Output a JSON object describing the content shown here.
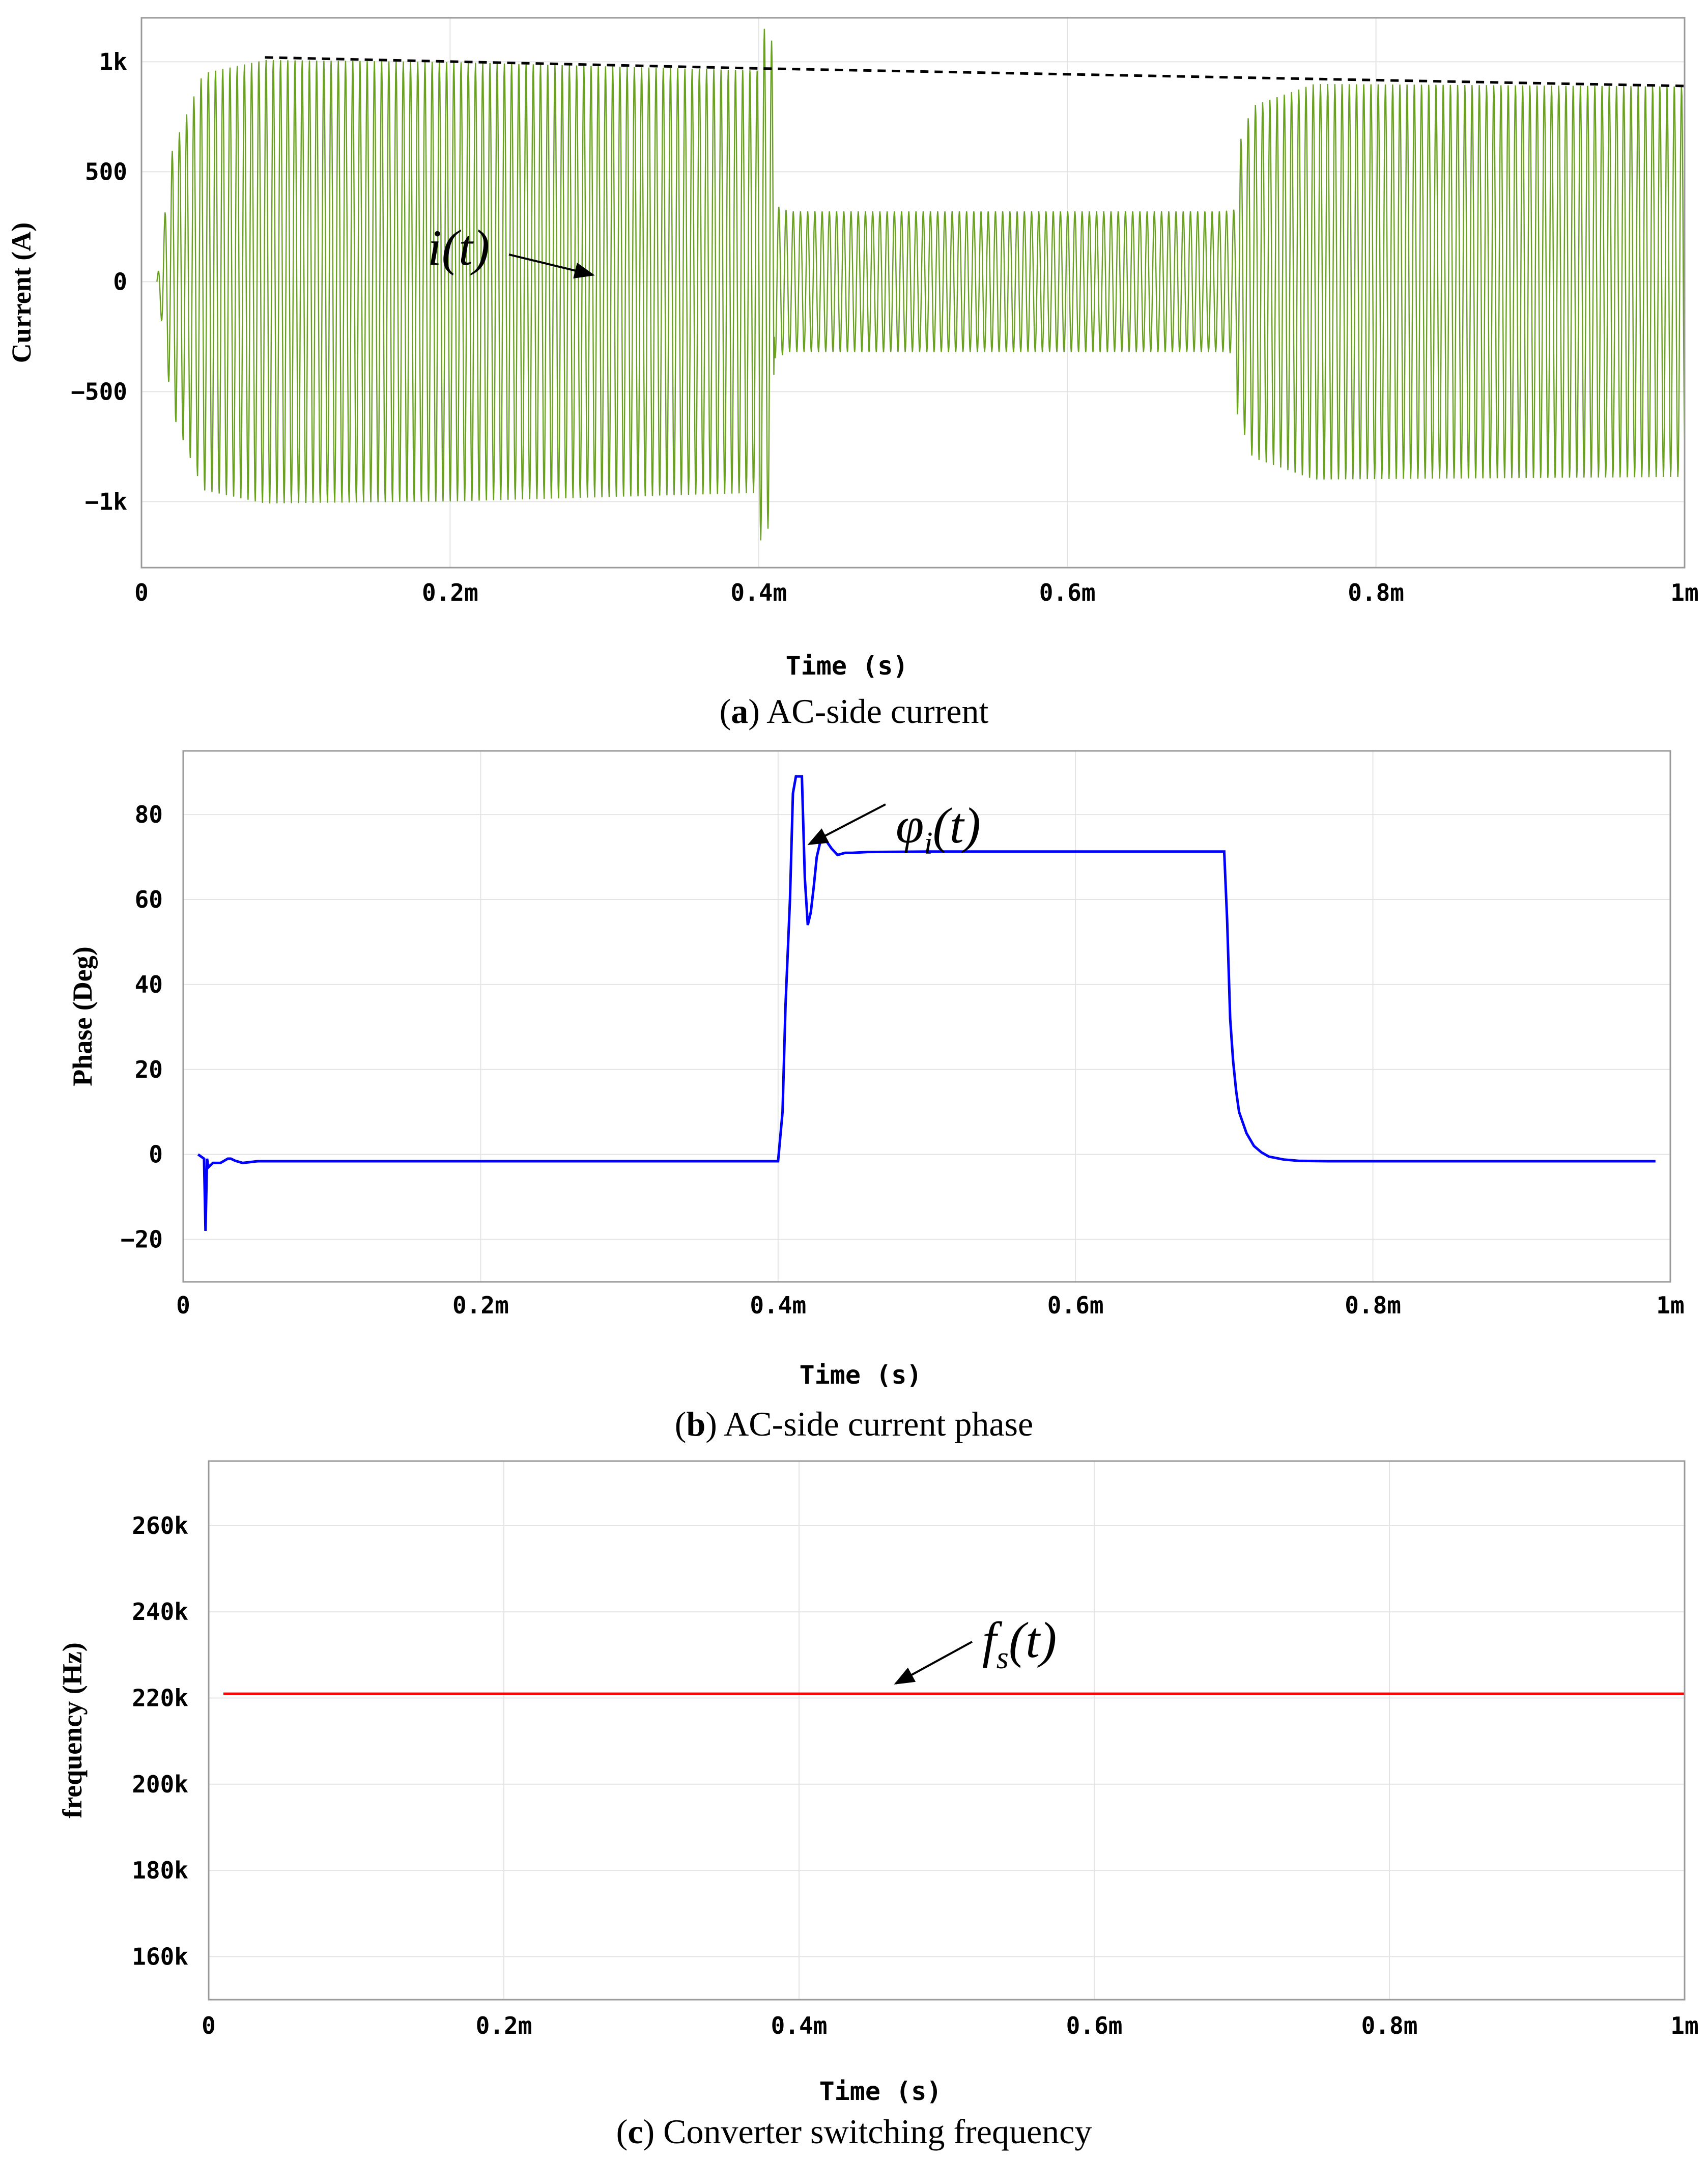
{
  "chart_data": [
    {
      "type": "line",
      "panel": "a",
      "caption_letter": "a",
      "caption_text": "AC-side current",
      "xlabel": "Time (s)",
      "ylabel": "Current (A)",
      "xlim": [
        0,
        0.001
      ],
      "ylim": [
        -1300,
        1200
      ],
      "x_ticks": [
        0,
        0.0002,
        0.0004,
        0.0006,
        0.0008,
        0.001
      ],
      "x_tick_labels": [
        "0",
        "0.2m",
        "0.4m",
        "0.6m",
        "0.8m",
        "1m"
      ],
      "y_ticks": [
        1000,
        500,
        0,
        -500,
        -1000
      ],
      "y_tick_labels": [
        "1k",
        "500",
        "0",
        "−500",
        "−1k"
      ],
      "grid": true,
      "annotation": {
        "text": "i(t)",
        "at": [
          0.0003,
          50
        ]
      },
      "series": [
        {
          "color": "#6aa121",
          "waveform": "oscillating",
          "envelope_time": [
            1e-05,
            2e-05,
            4e-05,
            8e-05,
            0.0002,
            0.0004,
            0.000401,
            0.0004098,
            0.00041,
            0.00042,
            0.0007,
            0.0007098,
            0.00071,
            0.00072,
            0.00076,
            0.001
          ],
          "envelope_amplitude": [
            0,
            600,
            950,
            1010,
            1000,
            960,
            1180,
            1080,
            350,
            320,
            320,
            330,
            600,
            800,
            900,
            890
          ]
        },
        {
          "color": "#000000",
          "style": "dashed",
          "x": [
            8e-05,
            0.0004,
            0.001
          ],
          "y": [
            1020,
            970,
            890
          ]
        }
      ]
    },
    {
      "type": "line",
      "panel": "b",
      "caption_letter": "b",
      "caption_text": "AC-side current phase",
      "xlabel": "Time (s)",
      "ylabel": "Phase (Deg)",
      "xlim": [
        0,
        0.001
      ],
      "ylim": [
        -30,
        95
      ],
      "x_ticks": [
        0,
        0.0002,
        0.0004,
        0.0006,
        0.0008,
        0.001
      ],
      "x_tick_labels": [
        "0",
        "0.2m",
        "0.4m",
        "0.6m",
        "0.8m",
        "1m"
      ],
      "y_ticks": [
        80,
        60,
        40,
        20,
        0,
        -20
      ],
      "y_tick_labels": [
        "80",
        "60",
        "40",
        "20",
        "0",
        "−20"
      ],
      "grid": true,
      "annotation": {
        "text": "φ",
        "sub": "i",
        "suffix": "(t)",
        "at": [
          0.000425,
          85
        ]
      },
      "series": [
        {
          "color": "#0000ff",
          "x": [
            1e-05,
            1.4e-05,
            1.5e-05,
            1.6e-05,
            1.7e-05,
            2e-05,
            2.5e-05,
            3e-05,
            3.2e-05,
            3.5e-05,
            4e-05,
            5e-05,
            0.0004,
            0.000403,
            0.000405,
            0.000408,
            0.00041,
            0.000412,
            0.000416,
            0.000418,
            0.00042,
            0.000422,
            0.000424,
            0.000426,
            0.000428,
            0.00043,
            0.000432,
            0.000436,
            0.00044,
            0.000445,
            0.00045,
            0.00046,
            0.0005,
            0.0007,
            0.000702,
            0.000704,
            0.000706,
            0.000708,
            0.00071,
            0.000715,
            0.00072,
            0.000725,
            0.00073,
            0.00074,
            0.00075,
            0.00077,
            0.0008,
            0.00099
          ],
          "y": [
            0,
            -1,
            -18,
            -1,
            -3,
            -2,
            -2,
            -1,
            -1,
            -1.5,
            -2,
            -1.6,
            -1.6,
            10,
            35,
            60,
            85,
            89,
            89,
            65,
            54,
            57,
            63,
            70,
            73,
            75,
            74,
            72,
            70.5,
            71,
            71,
            71.2,
            71.3,
            71.3,
            55,
            32,
            22,
            15,
            10,
            5,
            2,
            0.5,
            -0.5,
            -1.2,
            -1.5,
            -1.6,
            -1.6,
            -1.6
          ]
        }
      ]
    },
    {
      "type": "line",
      "panel": "c",
      "caption_letter": "c",
      "caption_text": "Converter switching frequency",
      "xlabel": "Time (s)",
      "ylabel": "frequency (Hz)",
      "xlim": [
        0,
        0.001
      ],
      "ylim": [
        150000,
        275000
      ],
      "x_ticks": [
        0,
        0.0002,
        0.0004,
        0.0006,
        0.0008,
        0.001
      ],
      "x_tick_labels": [
        "0",
        "0.2m",
        "0.4m",
        "0.6m",
        "0.8m",
        "1m"
      ],
      "y_ticks": [
        260000,
        240000,
        220000,
        200000,
        180000,
        160000
      ],
      "y_tick_labels": [
        "260k",
        "240k",
        "220k",
        "200k",
        "180k",
        "160k"
      ],
      "grid": true,
      "annotation": {
        "text": "f",
        "sub": "s",
        "suffix": "(t)",
        "at": [
          0.00053,
          232000
        ]
      },
      "series": [
        {
          "color": "#ff0000",
          "x": [
            1e-05,
            0.001
          ],
          "y": [
            221000,
            221000
          ]
        }
      ]
    }
  ]
}
